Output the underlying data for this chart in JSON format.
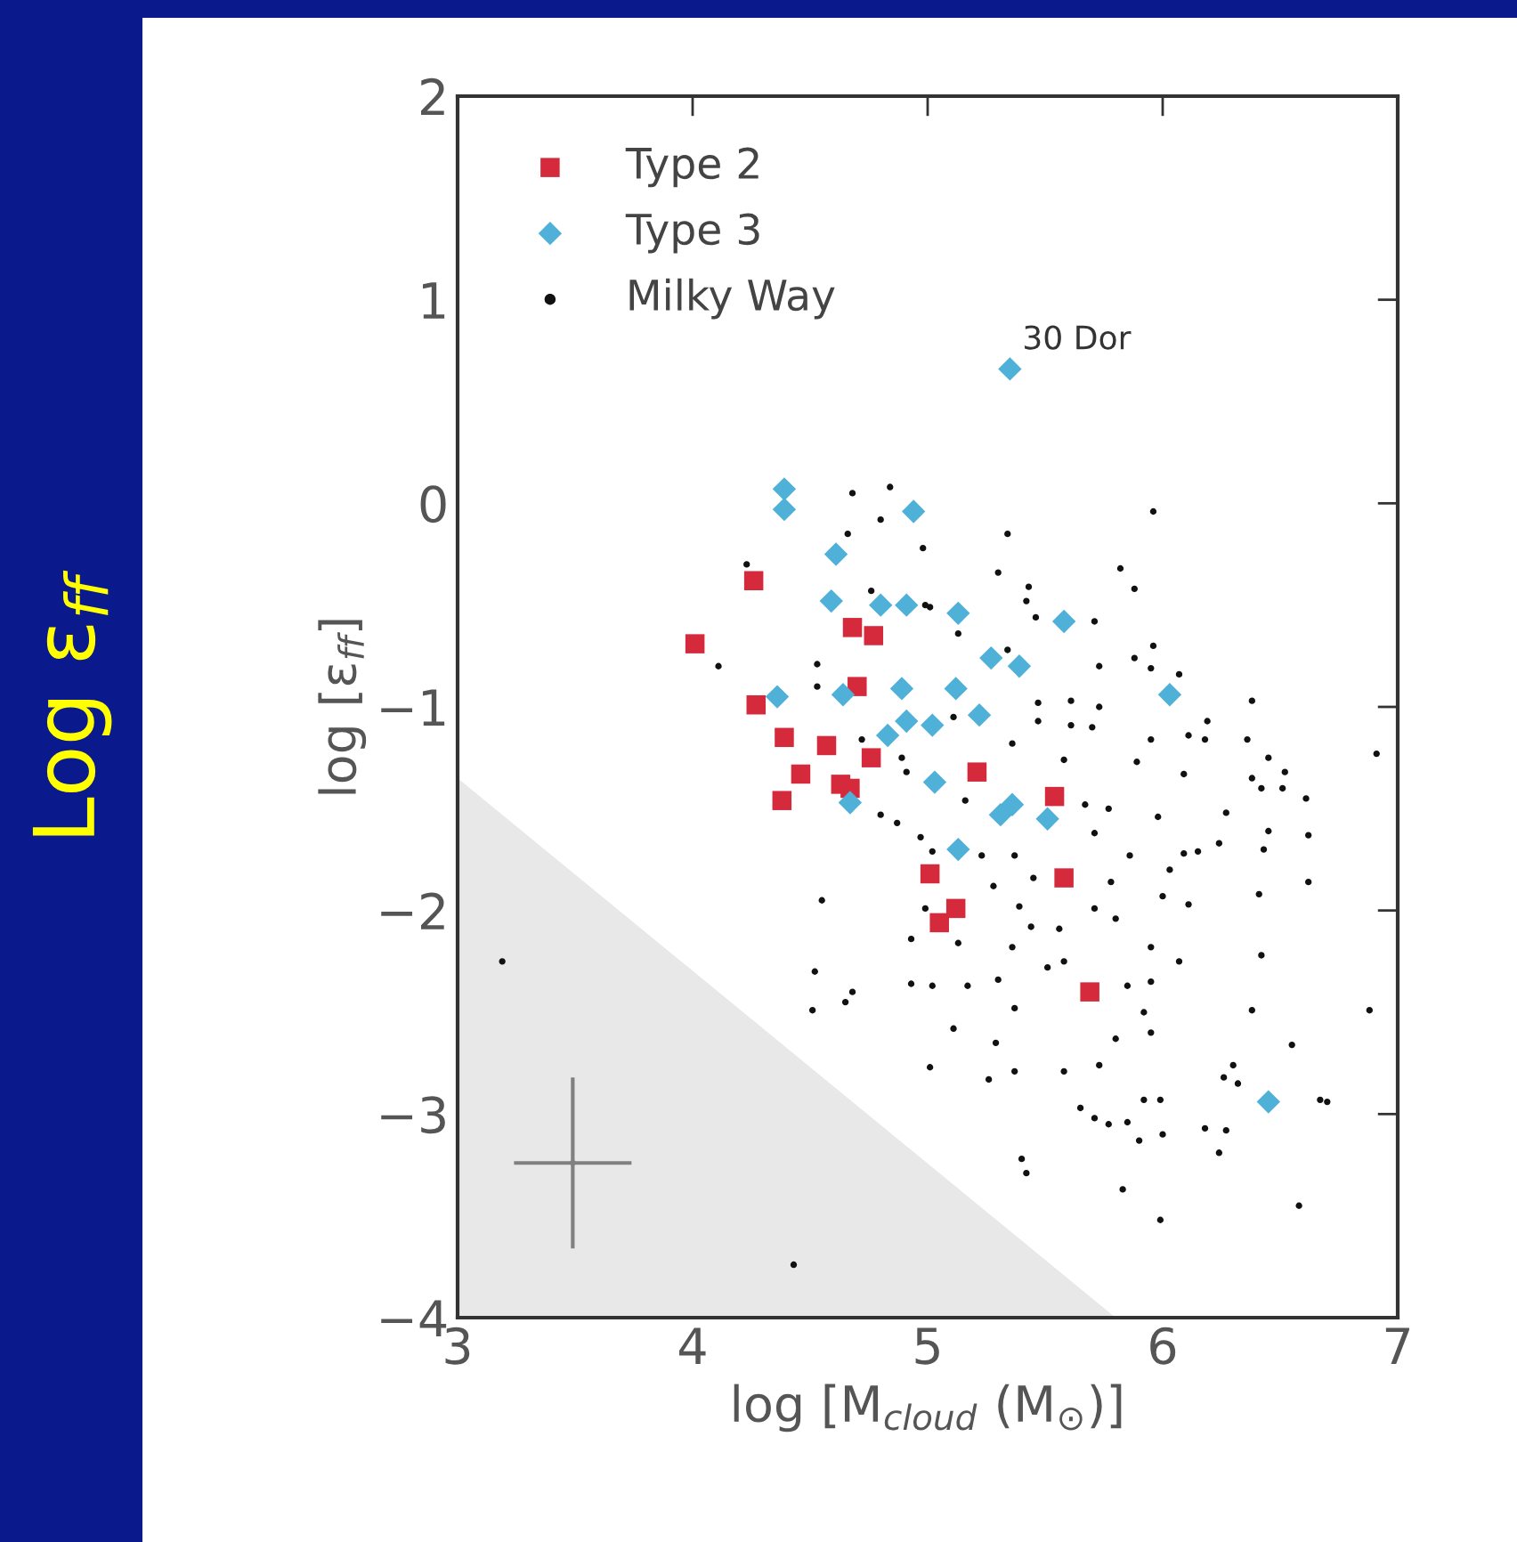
{
  "chart_data": {
    "type": "scatter",
    "xlabel": "log [M$_{cloud}$ (M$_{⊙}$)]",
    "ylabel": "log [ε$_{ff}$]",
    "annotations": [
      "Log ε$_{ff}$",
      {
        "text": "30 Dor",
        "x": 5.35,
        "y": 0.66
      }
    ],
    "xlim": [
      3,
      7
    ],
    "ylim": [
      -4,
      2
    ],
    "xticks": [
      3,
      4,
      5,
      6,
      7
    ],
    "yticks": [
      -4,
      -3,
      -2,
      -1,
      0,
      1,
      2
    ],
    "grid": false,
    "legend": "top left",
    "series": [
      {
        "type": "area",
        "color": "#e8e8e8",
        "x": [
          3,
          5.8
        ],
        "values": [
          -1.35,
          -4
        ]
      },
      {
        "type": "scatter",
        "marker": "none",
        "color": "#808080",
        "x": [
          3.49
        ],
        "values": [
          -3.24
        ],
        "errors": [
          0.42
        ],
        "xerrors": [
          0.25
        ]
      },
      {
        "name": "Type 2",
        "marker": "square",
        "color": "#d42a3c",
        "x": [
          4.01,
          4.26,
          4.27,
          4.39,
          4.38,
          4.46,
          4.57,
          4.63,
          4.67,
          4.68,
          4.77,
          4.7,
          4.76,
          5.01,
          5.05,
          5.12,
          5.21,
          5.54,
          5.58,
          5.69
        ],
        "values": [
          -0.69,
          -0.38,
          -0.99,
          -1.15,
          -1.46,
          -1.33,
          -1.19,
          -1.38,
          -1.4,
          -0.61,
          -0.65,
          -0.9,
          -1.25,
          -1.82,
          -2.06,
          -1.99,
          -1.32,
          -1.44,
          -1.84,
          -2.4
        ]
      },
      {
        "name": "Type 3",
        "marker": "diamond",
        "color": "#4fb0d8",
        "x": [
          4.39,
          4.39,
          4.94,
          4.61,
          4.59,
          4.8,
          4.91,
          4.36,
          4.64,
          4.89,
          4.91,
          4.83,
          5.02,
          4.67,
          5.13,
          5.58,
          5.27,
          5.39,
          5.12,
          5.22,
          6.03,
          5.03,
          5.36,
          5.31,
          5.51,
          5.13,
          6.45,
          5.35
        ],
        "values": [
          0.07,
          -0.03,
          -0.04,
          -0.25,
          -0.48,
          -0.5,
          -0.5,
          -0.95,
          -0.94,
          -0.91,
          -1.07,
          -1.14,
          -1.09,
          -1.47,
          -0.54,
          -0.58,
          -0.76,
          -0.8,
          -0.91,
          -1.04,
          -0.94,
          -1.37,
          -1.48,
          -1.53,
          -1.55,
          -1.7,
          -2.94,
          0.66
        ]
      },
      {
        "name": "Milky Way",
        "marker": "circle",
        "color": "#111111",
        "x": [
          4.68,
          4.84,
          4.8,
          4.66,
          4.98,
          4.23,
          4.76,
          4.99,
          4.11,
          4.53,
          4.53,
          4.72,
          4.89,
          4.91,
          4.8,
          4.87,
          4.97,
          5.02,
          5.96,
          5.34,
          5.3,
          5.82,
          5.88,
          5.43,
          5.42,
          5.46,
          5.71,
          5.13,
          5.01,
          5.34,
          5.73,
          5.88,
          5.95,
          5.96,
          6.07,
          6.38,
          5.47,
          5.61,
          5.73,
          5.47,
          5.61,
          5.7,
          5.11,
          5.36,
          5.95,
          6.11,
          6.19,
          6.18,
          6.36,
          6.91,
          5.58,
          5.89,
          6.09,
          6.45,
          6.38,
          6.52,
          6.42,
          6.51,
          6.61,
          6.27,
          5.98,
          5.77,
          5.67,
          5.16,
          5.71,
          5.86,
          6.15,
          6.24,
          6.45,
          6.62,
          6.43,
          6.03,
          6.09,
          5.37,
          5.23,
          5.28,
          5.45,
          5.78,
          6.0,
          6.11,
          6.41,
          6.62,
          5.39,
          5.71,
          5.8,
          5.44,
          5.56,
          4.93,
          5.13,
          5.36,
          5.95,
          6.07,
          6.42,
          5.58,
          5.51,
          4.93,
          5.02,
          5.17,
          5.3,
          5.85,
          5.95,
          5.37,
          5.92,
          6.38,
          6.88,
          5.11,
          5.95,
          5.8,
          5.29,
          6.55,
          5.01,
          5.26,
          5.37,
          5.58,
          5.73,
          6.3,
          6.26,
          6.32,
          5.65,
          5.71,
          5.77,
          5.85,
          5.92,
          5.99,
          5.9,
          6.0,
          6.18,
          6.27,
          6.24,
          6.67,
          6.7,
          5.4,
          5.42,
          5.83,
          5.99,
          6.58,
          4.55,
          4.99,
          4.52,
          4.68,
          4.65,
          4.51,
          3.19,
          4.43
        ],
        "values": [
          0.05,
          0.08,
          -0.08,
          -0.15,
          -0.22,
          -0.3,
          -0.43,
          -0.5,
          -0.8,
          -0.79,
          -0.9,
          -1.16,
          -1.25,
          -1.32,
          -1.53,
          -1.57,
          -1.64,
          -1.71,
          -0.04,
          -0.15,
          -0.34,
          -0.32,
          -0.42,
          -0.41,
          -0.48,
          -0.56,
          -0.58,
          -0.64,
          -0.51,
          -0.72,
          -0.8,
          -0.76,
          -0.81,
          -0.7,
          -0.84,
          -0.97,
          -0.98,
          -0.97,
          -1.0,
          -1.07,
          -1.09,
          -1.1,
          -1.05,
          -1.18,
          -1.16,
          -1.14,
          -1.07,
          -1.16,
          -1.16,
          -1.23,
          -1.26,
          -1.27,
          -1.33,
          -1.25,
          -1.35,
          -1.32,
          -1.4,
          -1.4,
          -1.45,
          -1.52,
          -1.54,
          -1.5,
          -1.48,
          -1.46,
          -1.62,
          -1.73,
          -1.71,
          -1.67,
          -1.61,
          -1.63,
          -1.7,
          -1.8,
          -1.72,
          -1.73,
          -1.73,
          -1.88,
          -1.84,
          -1.86,
          -1.93,
          -1.97,
          -1.92,
          -1.86,
          -1.98,
          -1.99,
          -2.04,
          -2.08,
          -2.09,
          -2.14,
          -2.16,
          -2.18,
          -2.18,
          -2.25,
          -2.22,
          -2.25,
          -2.28,
          -2.36,
          -2.37,
          -2.37,
          -2.34,
          -2.37,
          -2.35,
          -2.48,
          -2.5,
          -2.49,
          -2.49,
          -2.58,
          -2.6,
          -2.63,
          -2.65,
          -2.66,
          -2.77,
          -2.83,
          -2.79,
          -2.79,
          -2.76,
          -2.76,
          -2.82,
          -2.85,
          -2.97,
          -3.02,
          -3.05,
          -3.04,
          -2.93,
          -2.93,
          -3.13,
          -3.1,
          -3.07,
          -3.08,
          -3.19,
          -2.93,
          -2.94,
          -3.22,
          -3.29,
          -3.37,
          -3.52,
          -3.45,
          -1.95,
          -1.99,
          -2.3,
          -2.4,
          -2.45,
          -2.49,
          -2.25,
          -3.74
        ]
      }
    ]
  }
}
